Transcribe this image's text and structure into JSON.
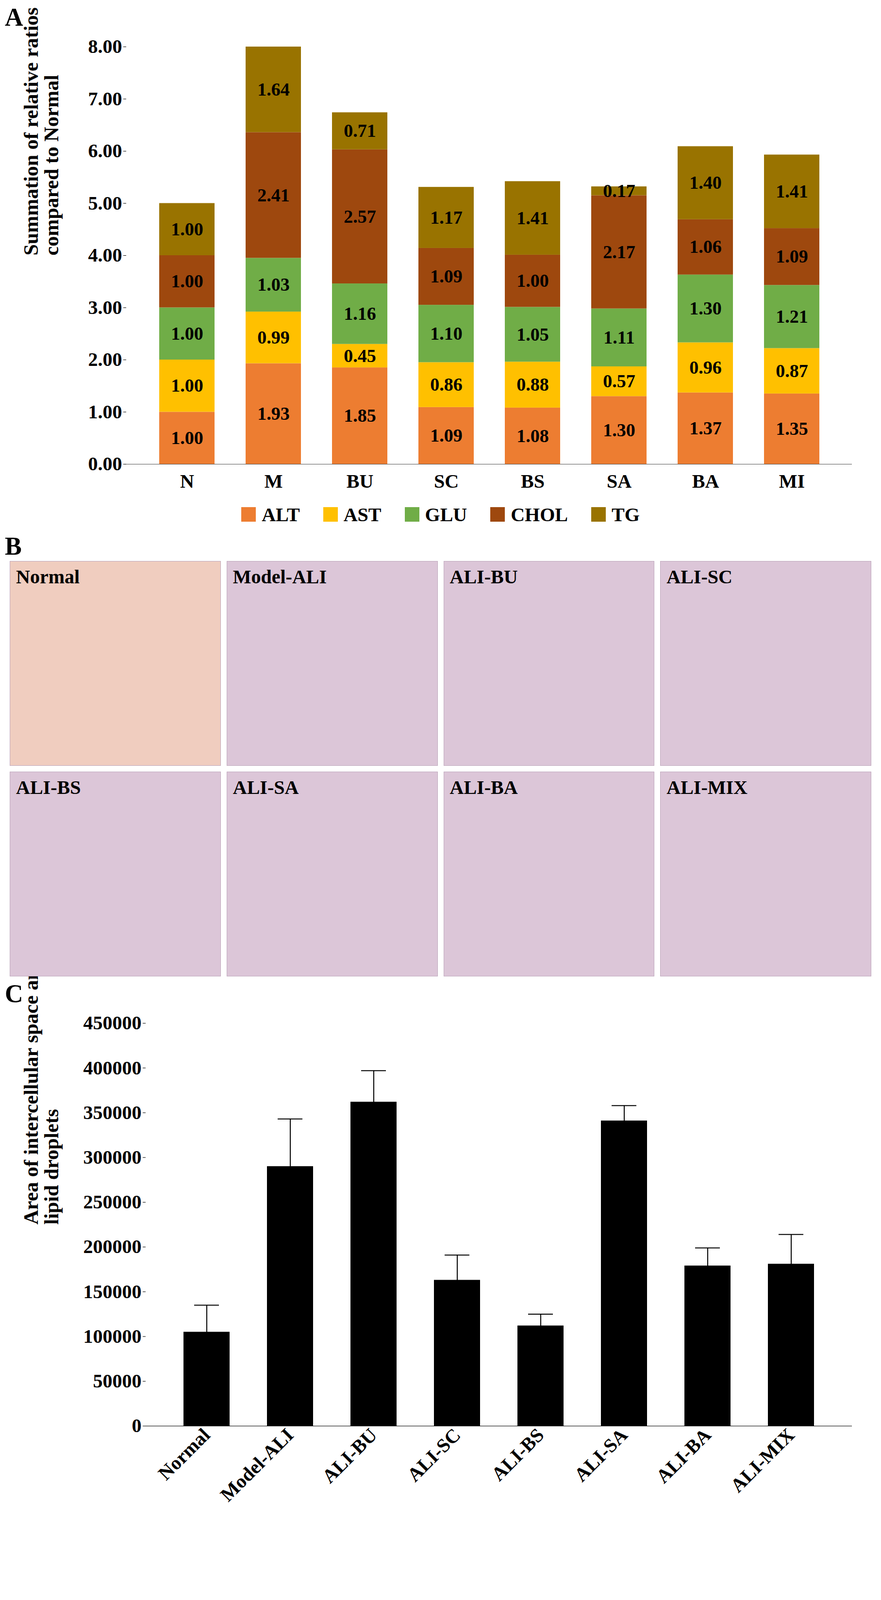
{
  "chart_data": [
    {
      "type": "bar",
      "title": "A",
      "stacked": true,
      "data_labels": true,
      "legend": "bottom",
      "y_label": "Summation of relative ratios compared to Normal",
      "categories": [
        "N",
        "M",
        "BU",
        "SC",
        "BS",
        "SA",
        "BA",
        "MI"
      ],
      "series": [
        {
          "name": "ALT",
          "color": "#ED7D31",
          "values": [
            1.0,
            1.93,
            1.85,
            1.09,
            1.08,
            1.3,
            1.37,
            1.35
          ],
          "value_labels": [
            "1.00",
            "1.93",
            "1.85",
            "1.09",
            "1.08",
            "1.30",
            "1.37",
            "1.35"
          ]
        },
        {
          "name": "AST",
          "color": "#FFC000",
          "values": [
            1.0,
            0.99,
            0.45,
            0.86,
            0.88,
            0.57,
            0.96,
            0.87
          ],
          "value_labels": [
            "1.00",
            "0.99",
            "0.45",
            "0.86",
            "0.88",
            "0.57",
            "0.96",
            "0.87"
          ]
        },
        {
          "name": "GLU",
          "color": "#70AD47",
          "values": [
            1.0,
            1.03,
            1.16,
            1.1,
            1.05,
            1.11,
            1.3,
            1.21
          ],
          "value_labels": [
            "1.00",
            "1.03",
            "1.16",
            "1.10",
            "1.05",
            "1.11",
            "1.30",
            "1.21"
          ]
        },
        {
          "name": "CHOL",
          "color": "#9E480E",
          "values": [
            1.0,
            2.41,
            2.57,
            1.09,
            1.0,
            2.17,
            1.06,
            1.09
          ],
          "value_labels": [
            "1.00",
            "2.41",
            "2.57",
            "1.09",
            "1.00",
            "2.17",
            "1.06",
            "1.09"
          ]
        },
        {
          "name": "TG",
          "color": "#997300",
          "values": [
            1.0,
            1.64,
            0.71,
            1.17,
            1.41,
            0.17,
            1.4,
            1.41
          ],
          "value_labels": [
            "1.00",
            "1.64",
            "0.71",
            "1.17",
            "1.41",
            "0.17",
            "1.40",
            "1.41"
          ]
        }
      ],
      "ylim": [
        0,
        8
      ],
      "yticks": [
        {
          "value": 0,
          "label": "0.00"
        },
        {
          "value": 1,
          "label": "1.00"
        },
        {
          "value": 2,
          "label": "2.00"
        },
        {
          "value": 3,
          "label": "3.00"
        },
        {
          "value": 4,
          "label": "4.00"
        },
        {
          "value": 5,
          "label": "5.00"
        },
        {
          "value": 6,
          "label": "6.00"
        },
        {
          "value": 7,
          "label": "7.00"
        },
        {
          "value": 8,
          "label": "8.00"
        }
      ],
      "grid": false
    },
    {
      "type": "image_grid",
      "title": "B",
      "labels": [
        "Normal",
        "Model-ALI",
        "ALI-BU",
        "ALI-SC",
        "ALI-BS",
        "ALI-SA",
        "ALI-BA",
        "ALI-MIX"
      ]
    },
    {
      "type": "bar",
      "title": "C",
      "color": "#000000",
      "y_label": "Area of intercellular space and lipid droplets",
      "categories": [
        "Normal",
        "Model-ALI",
        "ALI-BU",
        "ALI-SC",
        "ALI-BS",
        "ALI-SA",
        "ALI-BA",
        "ALI-MIX"
      ],
      "values": [
        105000,
        290000,
        362000,
        163000,
        112000,
        341000,
        179000,
        181000
      ],
      "errors": [
        30000,
        53000,
        35000,
        28000,
        13000,
        17000,
        20000,
        33000
      ],
      "ylim": [
        0,
        450000
      ],
      "yticks": [
        0,
        50000,
        100000,
        150000,
        200000,
        250000,
        300000,
        350000,
        400000,
        450000
      ],
      "grid": false
    }
  ]
}
